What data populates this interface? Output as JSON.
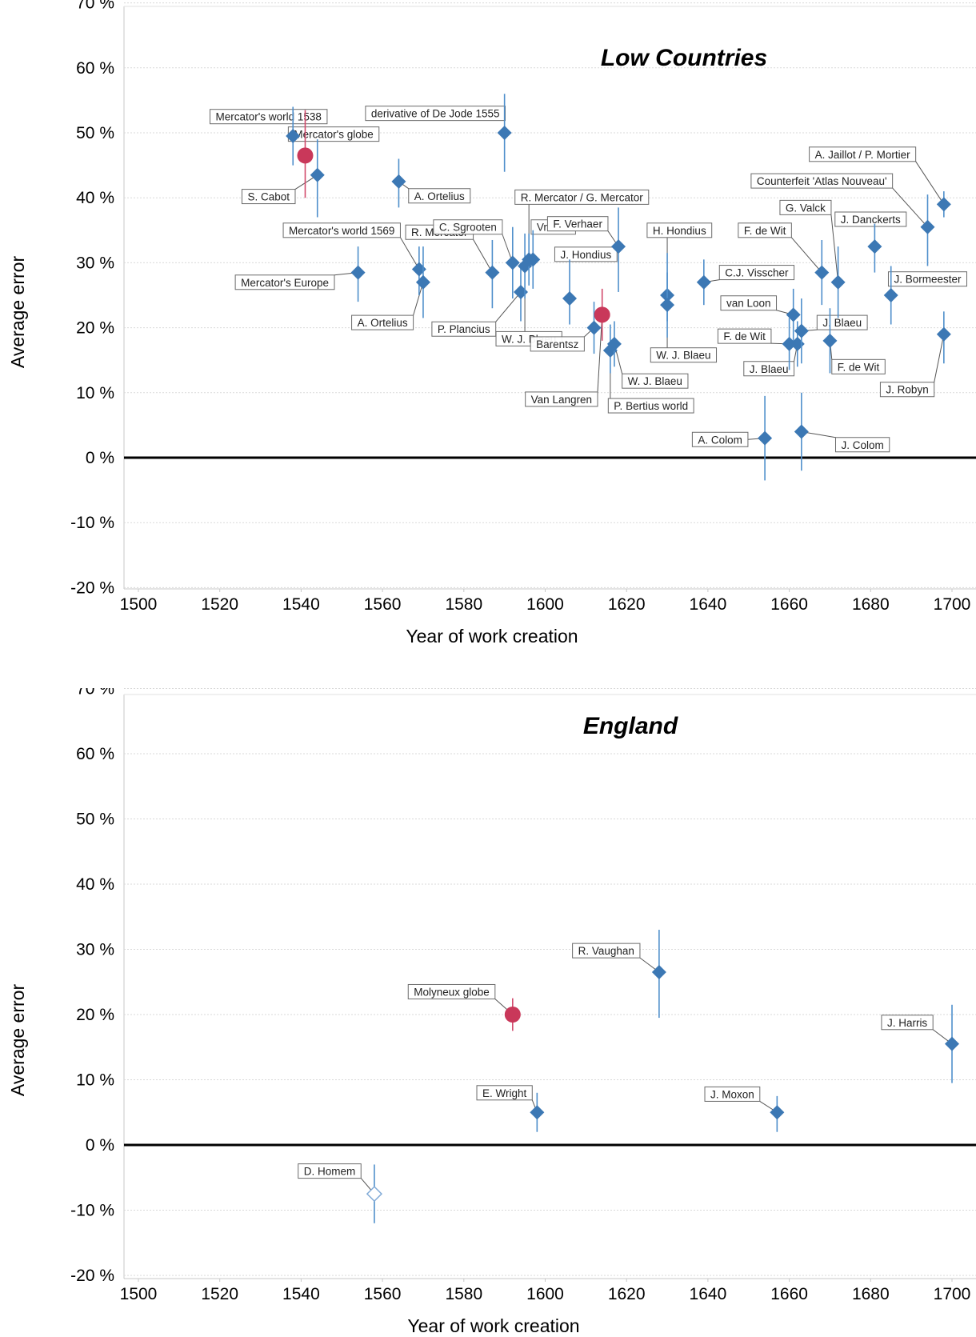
{
  "colors": {
    "marker": "#3c78b4",
    "errorbar": "#4f8fcb",
    "globe": "#c9385a",
    "globe_bar": "#d24a6c",
    "zero_line": "#000000",
    "grid": "#d9d9d9",
    "leader": "#555555"
  },
  "chart_data": [
    {
      "type": "scatter",
      "title": "Low Countries",
      "xlabel": "Year of work creation",
      "ylabel": "Average error",
      "xlim": [
        1497,
        1704
      ],
      "ylim": [
        -21,
        71
      ],
      "xticks": [
        1500,
        1520,
        1540,
        1560,
        1580,
        1600,
        1620,
        1640,
        1660,
        1680,
        1700
      ],
      "xtick_labels": [
        "1500",
        "1520",
        "1540",
        "1560",
        "1580",
        "1600",
        "1620",
        "1640",
        "1660",
        "1680",
        "1700"
      ],
      "yticks": [
        -20,
        -10,
        0,
        10,
        20,
        30,
        40,
        50,
        60,
        70
      ],
      "ytick_labels": [
        "-20 %",
        "-10 %",
        "0 %",
        "10 %",
        "20 %",
        "30 %",
        "40 %",
        "50 %",
        "60 %",
        "70 %"
      ],
      "grid": true,
      "zero_line": true,
      "points": [
        {
          "x": 1538,
          "y": 49.5,
          "lo": 45,
          "hi": 54,
          "marker": "diamond",
          "label": "Mercator's world 1538",
          "label_pos": [
            1532,
            52.5
          ]
        },
        {
          "x": 1541,
          "y": 46.5,
          "lo": 40,
          "hi": 53.5,
          "marker": "globe",
          "label": "Mercator's globe",
          "label_pos": [
            1548,
            49.8
          ]
        },
        {
          "x": 1544,
          "y": 43.5,
          "lo": 37,
          "hi": 49,
          "marker": "diamond",
          "label": "S. Cabot",
          "label_pos": [
            1532,
            40.2
          ]
        },
        {
          "x": 1564,
          "y": 42.5,
          "lo": 38.5,
          "hi": 46,
          "marker": "diamond",
          "label": "A. Ortelius",
          "label_pos": [
            1574,
            40.3
          ]
        },
        {
          "x": 1590,
          "y": 50,
          "lo": 44,
          "hi": 56,
          "marker": "diamond",
          "label": "derivative of De Jode 1555",
          "label_pos": [
            1573,
            53
          ]
        },
        {
          "x": 1554,
          "y": 28.5,
          "lo": 24,
          "hi": 32.5,
          "marker": "diamond",
          "label": "Mercator's Europe",
          "label_pos": [
            1536,
            27
          ]
        },
        {
          "x": 1569,
          "y": 29,
          "lo": 25,
          "hi": 32.5,
          "marker": "diamond",
          "label": "Mercator's world 1569",
          "label_pos": [
            1550,
            35
          ]
        },
        {
          "x": 1570,
          "y": 27,
          "lo": 21.5,
          "hi": 32.5,
          "marker": "diamond",
          "label": "A. Ortelius",
          "label_pos": [
            1560,
            20.8
          ]
        },
        {
          "x": 1587,
          "y": 28.5,
          "lo": 23,
          "hi": 33.5,
          "marker": "diamond",
          "label": "R. Mercator",
          "label_pos": [
            1574,
            34.7
          ]
        },
        {
          "x": 1592,
          "y": 30,
          "lo": 24.5,
          "hi": 35.5,
          "marker": "diamond",
          "label": "C. Sgrooten",
          "label_pos": [
            1581,
            35.5
          ],
          "obscured": true
        },
        {
          "x": 1594,
          "y": 25.5,
          "lo": 21,
          "hi": 30,
          "marker": "diamond",
          "label": "P. Plancius",
          "label_pos": [
            1580,
            19.8
          ]
        },
        {
          "x": 1595,
          "y": 29.5,
          "lo": 24.5,
          "hi": 34.5,
          "marker": "diamond",
          "label": "W. J. Blaeu",
          "label_pos": [
            1596,
            18.3
          ]
        },
        {
          "x": 1596,
          "y": 30.5,
          "lo": 26.5,
          "hi": 34.5,
          "marker": "diamond",
          "label": "R. Mercator / G. Mercator",
          "label_pos": [
            1609,
            40.1
          ]
        },
        {
          "x": 1597,
          "y": 30.5,
          "lo": 26,
          "hi": 35,
          "marker": "diamond",
          "label": "Vrients",
          "label_pos": [
            1602,
            35.5
          ],
          "obscured": true
        },
        {
          "x": 1606,
          "y": 24.5,
          "lo": 20.5,
          "hi": 30.5,
          "marker": "diamond",
          "label": "J. Hondius",
          "label_pos": [
            1610,
            31.3
          ]
        },
        {
          "x": 1612,
          "y": 20,
          "lo": 16,
          "hi": 24,
          "marker": "diamond",
          "label": "Barentsz",
          "label_pos": [
            1603,
            17.5
          ],
          "obscured": true
        },
        {
          "x": 1614,
          "y": 22,
          "lo": 18,
          "hi": 26,
          "marker": "globe",
          "label": "Van Langren",
          "label_pos": [
            1604,
            9
          ]
        },
        {
          "x": 1616,
          "y": 16.5,
          "lo": 13,
          "hi": 20.5,
          "marker": "diamond",
          "label": "P. Bertius world",
          "label_pos": [
            1626,
            8
          ]
        },
        {
          "x": 1617,
          "y": 17.5,
          "lo": 14,
          "hi": 21,
          "marker": "diamond",
          "label": "W. J. Blaeu",
          "label_pos": [
            1627,
            11.8
          ]
        },
        {
          "x": 1618,
          "y": 32.5,
          "lo": 25.5,
          "hi": 38.5,
          "marker": "diamond",
          "label": "F. Verhaer",
          "label_pos": [
            1608,
            36
          ]
        },
        {
          "x": 1630,
          "y": 25,
          "lo": 21,
          "hi": 31.5,
          "marker": "diamond",
          "label": "H. Hondius",
          "label_pos": [
            1633,
            35
          ]
        },
        {
          "x": 1630,
          "y": 23.5,
          "lo": 18.5,
          "hi": 28.5,
          "marker": "diamond",
          "label": "W. J. Blaeu",
          "label_pos": [
            1634,
            15.8
          ]
        },
        {
          "x": 1639,
          "y": 27,
          "lo": 23.5,
          "hi": 30.5,
          "marker": "diamond",
          "label": "C.J. Visscher",
          "label_pos": [
            1652,
            28.5
          ]
        },
        {
          "x": 1661,
          "y": 22,
          "lo": 18,
          "hi": 26,
          "marker": "diamond",
          "label": "van Loon",
          "label_pos": [
            1650,
            23.8
          ]
        },
        {
          "x": 1660,
          "y": 17.5,
          "lo": 13.5,
          "hi": 21.5,
          "marker": "diamond",
          "label": "F. de Wit",
          "label_pos": [
            1649,
            18.7
          ]
        },
        {
          "x": 1662,
          "y": 17.5,
          "lo": 14,
          "hi": 21,
          "marker": "diamond",
          "label": "J. Blaeu",
          "label_pos": [
            1655,
            13.7
          ]
        },
        {
          "x": 1663,
          "y": 19.5,
          "lo": 14.5,
          "hi": 24.5,
          "marker": "diamond",
          "label": "J. Blaeu",
          "label_pos": [
            1673,
            20.8
          ]
        },
        {
          "x": 1668,
          "y": 28.5,
          "lo": 23.5,
          "hi": 33.5,
          "marker": "diamond",
          "label": "F. de Wit",
          "label_pos": [
            1654,
            35
          ]
        },
        {
          "x": 1672,
          "y": 27,
          "lo": 21.5,
          "hi": 32.5,
          "marker": "diamond",
          "label": "G. Valck",
          "label_pos": [
            1664,
            38.5
          ]
        },
        {
          "x": 1670,
          "y": 18,
          "lo": 13,
          "hi": 23,
          "marker": "diamond",
          "label": "F. de Wit",
          "label_pos": [
            1677,
            14
          ]
        },
        {
          "x": 1681,
          "y": 32.5,
          "lo": 28.5,
          "hi": 36,
          "marker": "diamond",
          "label": "J. Danckerts",
          "label_pos": [
            1680,
            36.7
          ]
        },
        {
          "x": 1685,
          "y": 25,
          "lo": 20.5,
          "hi": 29.5,
          "marker": "diamond",
          "label": "J. Bormeester",
          "label_pos": [
            1694,
            27.5
          ]
        },
        {
          "x": 1694,
          "y": 35.5,
          "lo": 29.5,
          "hi": 40.5,
          "marker": "diamond",
          "label": "Counterfeit 'Atlas Nouveau'",
          "label_pos": [
            1668,
            42.6
          ]
        },
        {
          "x": 1698,
          "y": 39,
          "lo": 37,
          "hi": 41,
          "marker": "diamond",
          "label": "A. Jaillot / P. Mortier",
          "label_pos": [
            1678,
            46.7
          ]
        },
        {
          "x": 1698,
          "y": 19,
          "lo": 14.5,
          "hi": 22.5,
          "marker": "diamond",
          "label": "J. Robyn",
          "label_pos": [
            1689,
            10.5
          ]
        },
        {
          "x": 1654,
          "y": 3,
          "lo": -3.5,
          "hi": 9.5,
          "marker": "diamond",
          "label": "A. Colom",
          "label_pos": [
            1643,
            2.8
          ]
        },
        {
          "x": 1663,
          "y": 4,
          "lo": -2,
          "hi": 10,
          "marker": "diamond",
          "label": "J. Colom",
          "label_pos": [
            1678,
            2
          ]
        }
      ]
    },
    {
      "type": "scatter",
      "title": "England",
      "xlabel": "Year of work creation",
      "ylabel": "Average error",
      "xlim": [
        1497,
        1704
      ],
      "ylim": [
        -21,
        71
      ],
      "xticks": [
        1500,
        1520,
        1540,
        1560,
        1580,
        1600,
        1620,
        1640,
        1660,
        1680,
        1700
      ],
      "xtick_labels": [
        "1500",
        "1520",
        "1540",
        "1560",
        "1580",
        "1600",
        "1620",
        "1640",
        "1660",
        "1680",
        "1700"
      ],
      "yticks": [
        -20,
        -10,
        0,
        10,
        20,
        30,
        40,
        50,
        60,
        70
      ],
      "ytick_labels": [
        "-20 %",
        "-10 %",
        "0 %",
        "10 %",
        "20 %",
        "30 %",
        "40 %",
        "50 %",
        "60 %",
        "70 %"
      ],
      "grid": true,
      "zero_line": true,
      "points": [
        {
          "x": 1592,
          "y": 20,
          "lo": 17.5,
          "hi": 22.5,
          "marker": "globe",
          "label": "Molyneux globe",
          "label_pos": [
            1577,
            23.5
          ]
        },
        {
          "x": 1598,
          "y": 5,
          "lo": 2,
          "hi": 8,
          "marker": "diamond",
          "label": "E. Wright",
          "label_pos": [
            1590,
            8
          ]
        },
        {
          "x": 1628,
          "y": 26.5,
          "lo": 19.5,
          "hi": 33,
          "marker": "diamond",
          "label": "R. Vaughan",
          "label_pos": [
            1615,
            29.8
          ]
        },
        {
          "x": 1657,
          "y": 5,
          "lo": 2,
          "hi": 7.5,
          "marker": "diamond",
          "label": "J. Moxon",
          "label_pos": [
            1646,
            7.8
          ]
        },
        {
          "x": 1700,
          "y": 15.5,
          "lo": 9.5,
          "hi": 21.5,
          "marker": "diamond",
          "label": "J. Harris",
          "label_pos": [
            1689,
            18.8
          ]
        },
        {
          "x": 1558,
          "y": -7.5,
          "lo": -12,
          "hi": -3,
          "marker": "diamond-open",
          "label": "D. Homem",
          "label_pos": [
            1547,
            -4
          ]
        }
      ]
    }
  ]
}
